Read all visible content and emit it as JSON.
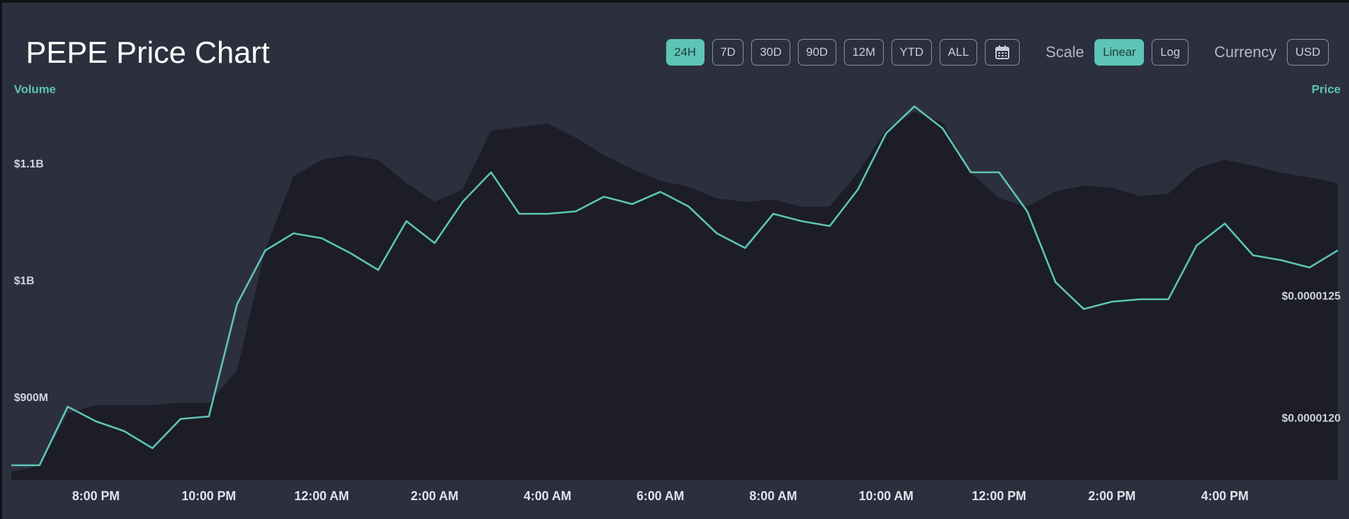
{
  "chart_data": {
    "type": "line",
    "title": "PEPE Price Chart",
    "x": [
      18.5,
      19,
      19.5,
      20,
      20.5,
      21,
      21.5,
      22,
      22.5,
      23,
      23.5,
      24,
      24.5,
      25,
      25.5,
      26,
      26.5,
      27,
      27.5,
      28,
      28.5,
      29,
      29.5,
      30,
      30.5,
      31,
      31.5,
      32,
      32.5,
      33,
      33.5,
      34,
      34.5,
      35,
      35.5,
      36,
      36.5,
      37,
      37.5,
      38,
      38.5,
      39,
      39.5,
      40,
      40.5,
      41,
      41.5,
      42
    ],
    "xlim": [
      18.3,
      42.2
    ],
    "xticks": [
      {
        "value": 20,
        "label": "8:00 PM"
      },
      {
        "value": 22,
        "label": "10:00 PM"
      },
      {
        "value": 24,
        "label": "12:00 AM"
      },
      {
        "value": 26,
        "label": "2:00 AM"
      },
      {
        "value": 28,
        "label": "4:00 AM"
      },
      {
        "value": 30,
        "label": "6:00 AM"
      },
      {
        "value": 32,
        "label": "8:00 AM"
      },
      {
        "value": 34,
        "label": "10:00 AM"
      },
      {
        "value": 36,
        "label": "12:00 PM"
      },
      {
        "value": 38,
        "label": "2:00 PM"
      },
      {
        "value": 40,
        "label": "4:00 PM"
      }
    ],
    "ylim": [
      830000000,
      1156000000
    ],
    "yticks": [
      {
        "value": 900000000,
        "label": "$900M"
      },
      {
        "value": 1000000000,
        "label": "$1B"
      },
      {
        "value": 1100000000,
        "label": "$1.1B"
      }
    ],
    "y2lim": [
      1.175e-05,
      1.331e-05
    ],
    "y2ticks": [
      {
        "value": 1.2e-05,
        "label": "$0.0000120"
      },
      {
        "value": 1.25e-05,
        "label": "$0.0000125"
      }
    ],
    "series": [
      {
        "name": "Volume",
        "type": "area",
        "axis": "y",
        "color": "#1c1d27",
        "values": [
          837000000,
          842000000,
          887000000,
          894000000,
          894000000,
          894000000,
          896000000,
          896000000,
          924000000,
          1027000000,
          1090000000,
          1104000000,
          1108000000,
          1104000000,
          1084000000,
          1068000000,
          1079000000,
          1129000000,
          1132000000,
          1135000000,
          1123000000,
          1108000000,
          1096000000,
          1086000000,
          1081000000,
          1071000000,
          1068000000,
          1070000000,
          1064000000,
          1064000000,
          1093000000,
          1130000000,
          1145000000,
          1136000000,
          1093000000,
          1071000000,
          1064000000,
          1077000000,
          1082000000,
          1080000000,
          1073000000,
          1075000000,
          1097000000,
          1104000000,
          1099000000,
          1093000000,
          1089000000,
          1084000000
        ]
      },
      {
        "name": "Price",
        "type": "line",
        "axis": "y2",
        "color": "#5ec4b7",
        "values": [
          1.181e-05,
          1.181e-05,
          1.205e-05,
          1.199e-05,
          1.195e-05,
          1.188e-05,
          1.2e-05,
          1.201e-05,
          1.247e-05,
          1.269e-05,
          1.276e-05,
          1.274e-05,
          1.268e-05,
          1.261e-05,
          1.281e-05,
          1.272e-05,
          1.289e-05,
          1.301e-05,
          1.284e-05,
          1.284e-05,
          1.285e-05,
          1.291e-05,
          1.288e-05,
          1.293e-05,
          1.287e-05,
          1.276e-05,
          1.27e-05,
          1.284e-05,
          1.281e-05,
          1.279e-05,
          1.294e-05,
          1.317e-05,
          1.328e-05,
          1.319e-05,
          1.301e-05,
          1.301e-05,
          1.285e-05,
          1.256e-05,
          1.245e-05,
          1.248e-05,
          1.249e-05,
          1.249e-05,
          1.271e-05,
          1.28e-05,
          1.267e-05,
          1.265e-05,
          1.262e-05,
          1.269e-05
        ]
      }
    ]
  },
  "controls": {
    "ranges": [
      "24H",
      "7D",
      "30D",
      "90D",
      "12M",
      "YTD",
      "ALL"
    ],
    "active_range": 0,
    "scale_label": "Scale",
    "scales": [
      "Linear",
      "Log"
    ],
    "active_scale": 0,
    "currency_label": "Currency",
    "currency": "USD"
  }
}
